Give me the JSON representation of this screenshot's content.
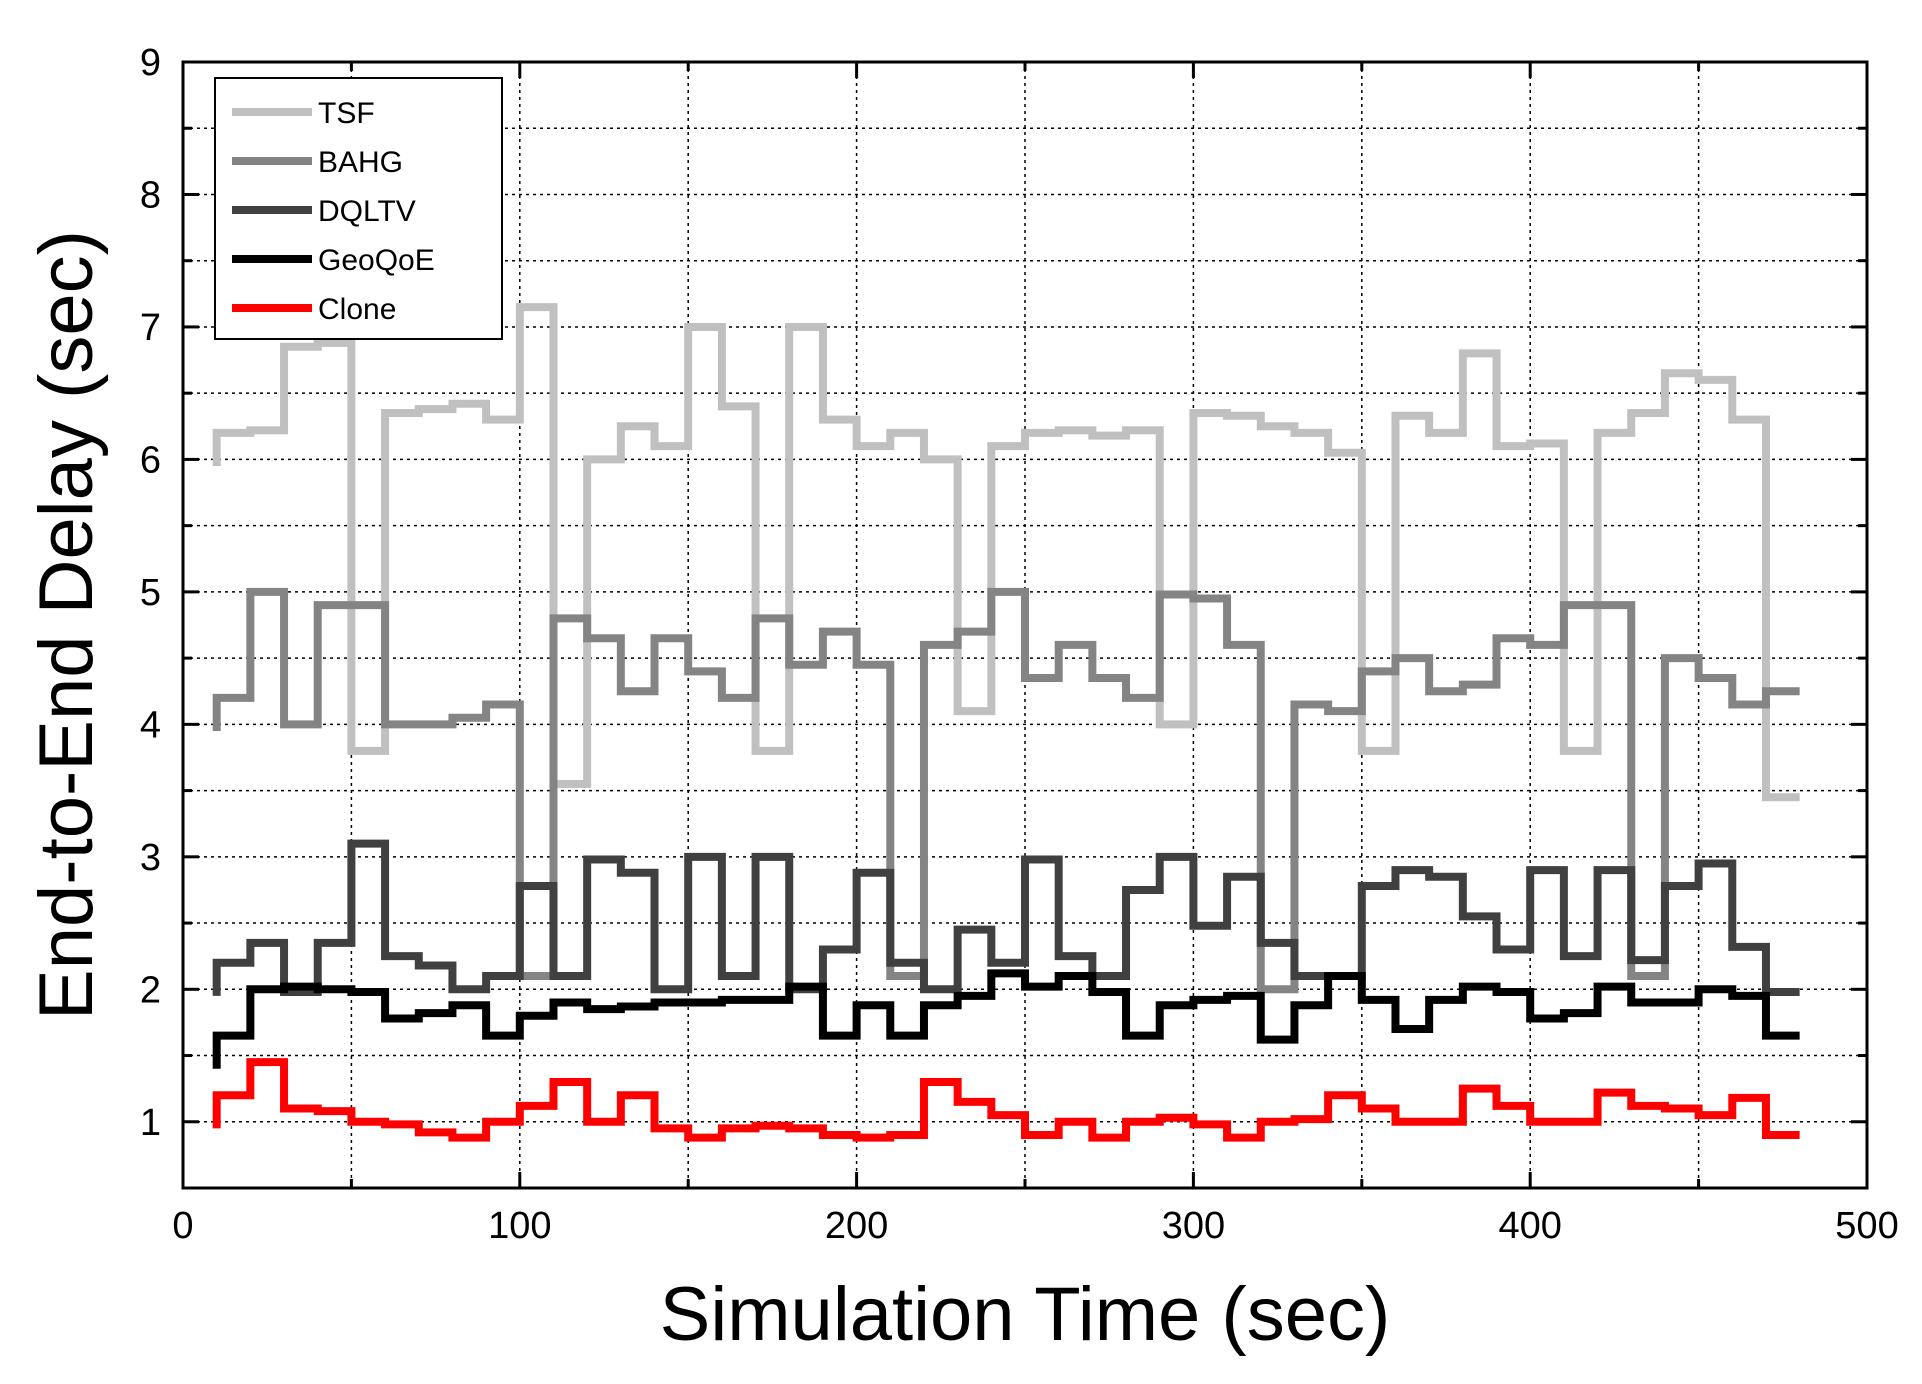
{
  "chart_data": {
    "type": "line",
    "line_style": "step",
    "title": "",
    "xlabel": "Simulation Time (sec)",
    "ylabel": "End-to-End Delay (sec)",
    "xlim": [
      0,
      500
    ],
    "ylim": [
      0.5,
      9
    ],
    "xticks": [
      0,
      100,
      200,
      300,
      400,
      500
    ],
    "yticks": [
      1,
      2,
      3,
      4,
      5,
      6,
      7,
      8,
      9
    ],
    "grid": true,
    "legend_position": "top-left",
    "x": [
      10,
      20,
      30,
      40,
      50,
      60,
      70,
      80,
      90,
      100,
      110,
      120,
      130,
      140,
      150,
      160,
      170,
      180,
      190,
      200,
      210,
      220,
      230,
      240,
      250,
      260,
      270,
      280,
      290,
      300,
      310,
      320,
      330,
      340,
      350,
      360,
      370,
      380,
      390,
      400,
      410,
      420,
      430,
      440,
      450,
      460,
      470,
      480
    ],
    "series": [
      {
        "name": "TSF",
        "color": "#c0c0c0",
        "values": [
          6.2,
          6.22,
          6.85,
          6.88,
          3.8,
          6.35,
          6.38,
          6.42,
          6.3,
          7.15,
          3.55,
          6.0,
          6.25,
          6.1,
          7.0,
          6.4,
          3.8,
          7.0,
          6.3,
          6.1,
          6.2,
          6.0,
          4.1,
          6.1,
          6.2,
          6.22,
          6.18,
          6.22,
          4.0,
          6.35,
          6.33,
          6.25,
          6.2,
          6.05,
          3.8,
          6.33,
          6.2,
          6.8,
          6.1,
          6.12,
          3.8,
          6.2,
          6.35,
          6.65,
          6.6,
          6.3,
          3.45,
          3.45
        ]
      },
      {
        "name": "BAHG",
        "color": "#848484",
        "values": [
          4.2,
          5.0,
          4.0,
          4.9,
          4.9,
          4.0,
          4.0,
          4.05,
          4.15,
          2.1,
          4.8,
          4.65,
          4.25,
          4.65,
          4.4,
          4.2,
          4.8,
          4.45,
          4.7,
          4.45,
          2.1,
          4.6,
          4.7,
          5.0,
          4.35,
          4.6,
          4.35,
          4.2,
          4.98,
          4.95,
          4.6,
          2.0,
          4.15,
          4.1,
          4.4,
          4.5,
          4.25,
          4.3,
          4.65,
          4.6,
          4.9,
          4.9,
          2.1,
          4.5,
          4.35,
          4.15,
          4.25,
          4.25
        ]
      },
      {
        "name": "DQLTV",
        "color": "#404040",
        "values": [
          2.2,
          2.35,
          1.98,
          2.35,
          3.1,
          2.25,
          2.18,
          2.0,
          2.1,
          2.78,
          2.1,
          2.98,
          2.88,
          2.0,
          3.0,
          2.1,
          3.0,
          2.0,
          2.3,
          2.88,
          2.2,
          2.0,
          2.45,
          2.2,
          2.98,
          2.25,
          2.1,
          2.75,
          3.0,
          2.48,
          2.85,
          2.35,
          2.1,
          2.1,
          2.78,
          2.9,
          2.85,
          2.55,
          2.3,
          2.9,
          2.25,
          2.9,
          2.22,
          2.78,
          2.95,
          2.32,
          1.98,
          1.98
        ]
      },
      {
        "name": "GeoQoE",
        "color": "#000000",
        "values": [
          1.65,
          2.0,
          2.02,
          2.0,
          1.98,
          1.78,
          1.82,
          1.88,
          1.65,
          1.8,
          1.9,
          1.85,
          1.87,
          1.9,
          1.9,
          1.92,
          1.92,
          2.02,
          1.65,
          1.88,
          1.65,
          1.88,
          1.95,
          2.12,
          2.02,
          2.1,
          1.98,
          1.65,
          1.88,
          1.92,
          1.95,
          1.62,
          1.88,
          2.1,
          1.92,
          1.7,
          1.92,
          2.02,
          1.98,
          1.78,
          1.82,
          2.02,
          1.9,
          1.9,
          2.0,
          1.95,
          1.65,
          1.65
        ]
      },
      {
        "name": "Clone",
        "color": "#ff0000",
        "values": [
          1.2,
          1.45,
          1.1,
          1.08,
          1.0,
          0.98,
          0.92,
          0.88,
          1.0,
          1.12,
          1.3,
          1.0,
          1.2,
          0.95,
          0.88,
          0.95,
          0.97,
          0.95,
          0.9,
          0.88,
          0.9,
          1.3,
          1.15,
          1.05,
          0.9,
          1.0,
          0.88,
          1.0,
          1.03,
          0.98,
          0.88,
          1.0,
          1.02,
          1.2,
          1.1,
          1.0,
          1.0,
          1.25,
          1.12,
          1.0,
          1.0,
          1.22,
          1.12,
          1.1,
          1.05,
          1.18,
          0.9,
          0.9
        ]
      }
    ]
  }
}
